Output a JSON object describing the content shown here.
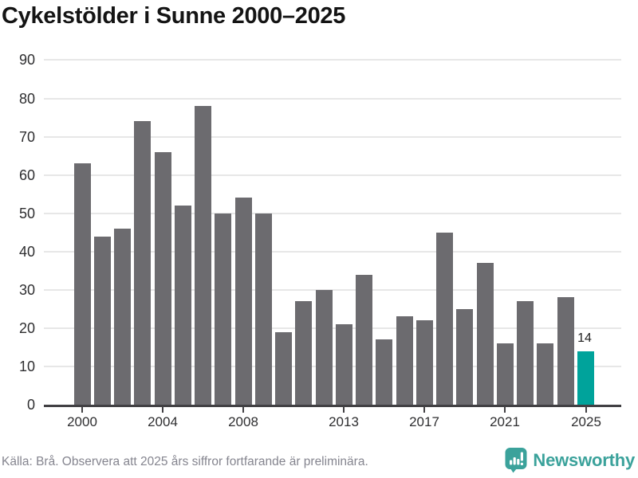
{
  "title": "Cykelstölder i Sunne 2000–2025",
  "chart_data": {
    "type": "bar",
    "title": "Cykelstölder i Sunne 2000–2025",
    "x": [
      2000,
      2001,
      2002,
      2003,
      2004,
      2005,
      2006,
      2007,
      2008,
      2009,
      2010,
      2011,
      2012,
      2013,
      2014,
      2015,
      2016,
      2017,
      2018,
      2019,
      2020,
      2021,
      2022,
      2023,
      2024,
      2025
    ],
    "values": [
      63,
      44,
      46,
      74,
      66,
      52,
      78,
      50,
      54,
      50,
      19,
      27,
      30,
      21,
      34,
      17,
      23,
      22,
      45,
      25,
      37,
      16,
      27,
      16,
      28,
      14
    ],
    "xlabel": "",
    "ylabel": "",
    "ylim": [
      0,
      90
    ],
    "yticks": [
      0,
      10,
      20,
      30,
      40,
      50,
      60,
      70,
      80,
      90
    ],
    "xtick_years": [
      2000,
      2004,
      2008,
      2013,
      2017,
      2021,
      2025
    ],
    "grid": "horizontal",
    "legend": "none",
    "highlight_year": 2025,
    "highlight_value_label": "14",
    "bar_color": "#6c6b6f",
    "highlight_color": "#00a39b"
  },
  "footer": {
    "source_text": "Källa: Brå. Observera att 2025 års siffror fortfarande är preliminära.",
    "brand_name": "Newsworthy"
  },
  "colors": {
    "background": "#ffffff",
    "title_text": "#141414",
    "axis_text": "#2e2e30",
    "gridline": "#e7e7e7",
    "axis_line": "#414043",
    "source_text": "#85858f",
    "brand_teal": "#3ba29b"
  }
}
